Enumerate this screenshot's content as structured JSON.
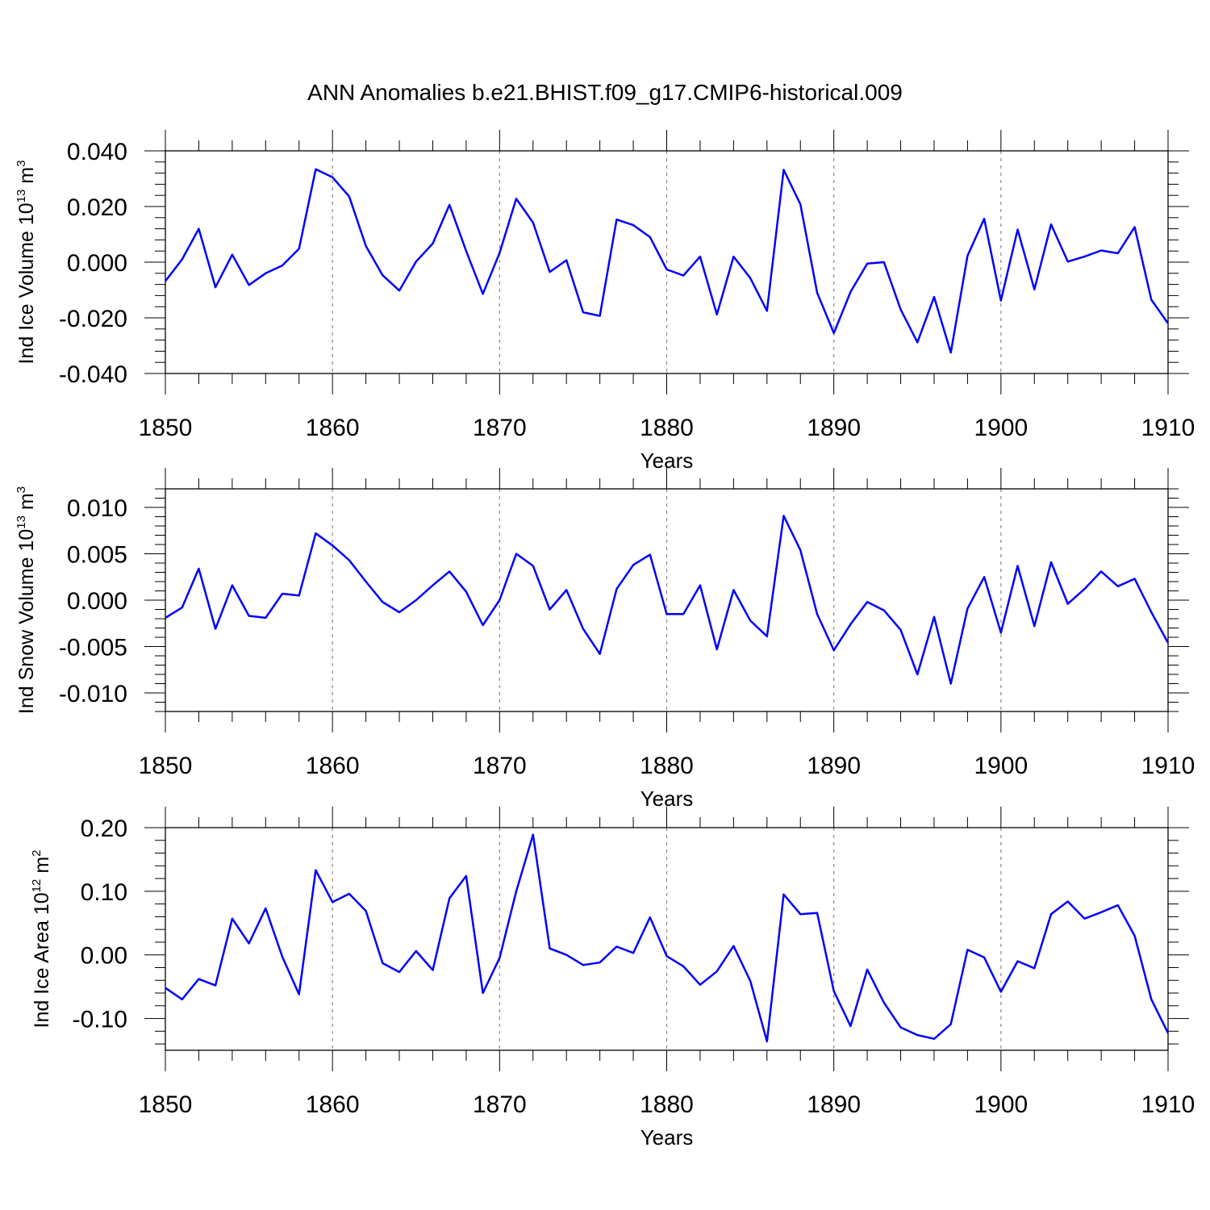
{
  "title": "ANN Anomalies b.e21.BHIST.f09_g17.CMIP6-historical.009",
  "colors": {
    "series": "#0000ff",
    "frame": "#000000",
    "grid": "#888888"
  },
  "chart_data": [
    {
      "type": "line",
      "ylabel": {
        "main": "Ind Ice Volume 10",
        "sup": "13",
        "mid": " m",
        "sup2": "3"
      },
      "xlabel": "Years",
      "xlim": [
        1850,
        1910
      ],
      "ylim": [
        -0.04,
        0.04
      ],
      "ytick_labels": [
        "0.040",
        "0.020",
        "0.000",
        "-0.020",
        "-0.040"
      ],
      "ytick_values": [
        0.04,
        0.02,
        0.0,
        -0.02,
        -0.04
      ],
      "xtick_labels": [
        "1850",
        "1860",
        "1870",
        "1880",
        "1890",
        "1900",
        "1910"
      ],
      "xtick_values": [
        1850,
        1860,
        1870,
        1880,
        1890,
        1900,
        1910
      ],
      "grid": "vertical dashed at major x ticks",
      "x": [
        1850,
        1851,
        1852,
        1853,
        1854,
        1855,
        1856,
        1857,
        1858,
        1859,
        1860,
        1861,
        1862,
        1863,
        1864,
        1865,
        1866,
        1867,
        1868,
        1869,
        1870,
        1871,
        1872,
        1873,
        1874,
        1875,
        1876,
        1877,
        1878,
        1879,
        1880,
        1881,
        1882,
        1883,
        1884,
        1885,
        1886,
        1887,
        1888,
        1889,
        1890,
        1891,
        1892,
        1893,
        1894,
        1895,
        1896,
        1897,
        1898,
        1899,
        1900,
        1901,
        1902,
        1903,
        1904,
        1905,
        1906,
        1907,
        1908,
        1909,
        1910
      ],
      "values": [
        -0.0068,
        0.001,
        0.012,
        -0.009,
        0.0027,
        -0.0082,
        -0.004,
        -0.0012,
        0.0048,
        0.0334,
        0.0305,
        0.0236,
        0.0058,
        -0.0047,
        -0.0102,
        0.0002,
        0.0067,
        0.0206,
        0.004,
        -0.0114,
        0.0033,
        0.0228,
        0.0142,
        -0.0035,
        0.0007,
        -0.018,
        -0.0193,
        0.0153,
        0.0133,
        0.009,
        -0.0026,
        -0.0048,
        0.002,
        -0.0188,
        0.002,
        -0.0057,
        -0.0175,
        0.0332,
        0.0208,
        -0.011,
        -0.0255,
        -0.0107,
        -0.0005,
        0.0,
        -0.017,
        -0.0288,
        -0.0125,
        -0.0325,
        0.0023,
        0.0156,
        -0.0138,
        0.0117,
        -0.0098,
        0.0136,
        0.0002,
        0.002,
        0.0042,
        0.0032,
        0.0126,
        -0.0135,
        -0.022
      ]
    },
    {
      "type": "line",
      "ylabel": {
        "main": "Ind Snow Volume 10",
        "sup": "13",
        "mid": " m",
        "sup2": "3"
      },
      "xlabel": "Years",
      "xlim": [
        1850,
        1910
      ],
      "ylim": [
        -0.012,
        0.012
      ],
      "ytick_labels": [
        "0.010",
        "0.005",
        "0.000",
        "-0.005",
        "-0.010"
      ],
      "ytick_values": [
        0.01,
        0.005,
        0.0,
        -0.005,
        -0.01
      ],
      "xtick_labels": [
        "1850",
        "1860",
        "1870",
        "1880",
        "1890",
        "1900",
        "1910"
      ],
      "xtick_values": [
        1850,
        1860,
        1870,
        1880,
        1890,
        1900,
        1910
      ],
      "grid": "vertical dashed at major x ticks",
      "x": [
        1850,
        1851,
        1852,
        1853,
        1854,
        1855,
        1856,
        1857,
        1858,
        1859,
        1860,
        1861,
        1862,
        1863,
        1864,
        1865,
        1866,
        1867,
        1868,
        1869,
        1870,
        1871,
        1872,
        1873,
        1874,
        1875,
        1876,
        1877,
        1878,
        1879,
        1880,
        1881,
        1882,
        1883,
        1884,
        1885,
        1886,
        1887,
        1888,
        1889,
        1890,
        1891,
        1892,
        1893,
        1894,
        1895,
        1896,
        1897,
        1898,
        1899,
        1900,
        1901,
        1902,
        1903,
        1904,
        1905,
        1906,
        1907,
        1908,
        1909,
        1910
      ],
      "values": [
        -0.0019,
        -0.0008,
        0.0034,
        -0.0031,
        0.0016,
        -0.0017,
        -0.0019,
        0.0007,
        0.0005,
        0.0072,
        0.0059,
        0.0043,
        0.002,
        -0.0002,
        -0.0013,
        0.0,
        0.0016,
        0.0031,
        0.0009,
        -0.0027,
        0.0,
        0.005,
        0.0037,
        -0.001,
        0.0011,
        -0.0031,
        -0.0058,
        0.0012,
        0.0038,
        0.0049,
        -0.0015,
        -0.0015,
        0.0016,
        -0.0053,
        0.0011,
        -0.0022,
        -0.0039,
        0.0091,
        0.0054,
        -0.0015,
        -0.0054,
        -0.0026,
        -0.0002,
        -0.0011,
        -0.0032,
        -0.008,
        -0.0018,
        -0.009,
        -0.0009,
        0.0025,
        -0.0035,
        0.0037,
        -0.0028,
        0.0041,
        -0.0004,
        0.0012,
        0.0031,
        0.0015,
        0.0023,
        -0.0013,
        -0.0046
      ]
    },
    {
      "type": "line",
      "ylabel": {
        "main": "Ind Ice Area 10",
        "sup": "12",
        "mid": " m",
        "sup2": "2"
      },
      "xlabel": "Years",
      "xlim": [
        1850,
        1910
      ],
      "ylim": [
        -0.15,
        0.2
      ],
      "ytick_labels": [
        "0.20",
        "0.10",
        "0.00",
        "-0.10"
      ],
      "ytick_values": [
        0.2,
        0.1,
        0.0,
        -0.1
      ],
      "xtick_labels": [
        "1850",
        "1860",
        "1870",
        "1880",
        "1890",
        "1900",
        "1910"
      ],
      "xtick_values": [
        1850,
        1860,
        1870,
        1880,
        1890,
        1900,
        1910
      ],
      "grid": "vertical dashed at major x ticks",
      "x": [
        1850,
        1851,
        1852,
        1853,
        1854,
        1855,
        1856,
        1857,
        1858,
        1859,
        1860,
        1861,
        1862,
        1863,
        1864,
        1865,
        1866,
        1867,
        1868,
        1869,
        1870,
        1871,
        1872,
        1873,
        1874,
        1875,
        1876,
        1877,
        1878,
        1879,
        1880,
        1881,
        1882,
        1883,
        1884,
        1885,
        1886,
        1887,
        1888,
        1889,
        1890,
        1891,
        1892,
        1893,
        1894,
        1895,
        1896,
        1897,
        1898,
        1899,
        1900,
        1901,
        1902,
        1903,
        1904,
        1905,
        1906,
        1907,
        1908,
        1909,
        1910
      ],
      "values": [
        -0.052,
        -0.07,
        -0.038,
        -0.048,
        0.057,
        0.018,
        0.073,
        -0.003,
        -0.062,
        0.133,
        0.083,
        0.096,
        0.069,
        -0.013,
        -0.027,
        0.006,
        -0.024,
        0.089,
        0.124,
        -0.06,
        -0.005,
        0.1,
        0.189,
        0.01,
        0.0,
        -0.016,
        -0.012,
        0.013,
        0.003,
        0.059,
        -0.002,
        -0.018,
        -0.047,
        -0.026,
        0.014,
        -0.041,
        -0.136,
        0.095,
        0.064,
        0.066,
        -0.057,
        -0.112,
        -0.023,
        -0.075,
        -0.114,
        -0.126,
        -0.132,
        -0.109,
        0.008,
        -0.004,
        -0.058,
        -0.01,
        -0.021,
        0.064,
        0.084,
        0.057,
        0.067,
        0.078,
        0.03,
        -0.07,
        -0.123
      ]
    }
  ]
}
